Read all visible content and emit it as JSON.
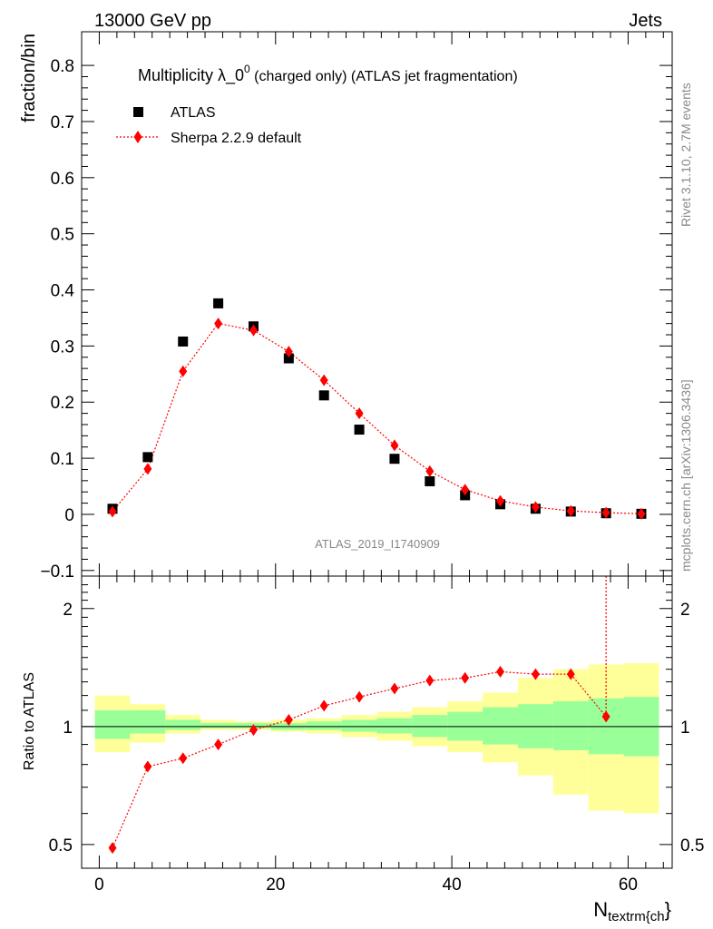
{
  "header": {
    "left": "13000 GeV pp",
    "right": "Jets"
  },
  "side_labels": {
    "rivet": "Rivet 3.1.10,  2.7M events",
    "mcplots": "mcplots.cern.ch [arXiv:1306.3436]"
  },
  "analysis_id": "ATLAS_2019_I1740909",
  "chart_data": [
    {
      "type": "scatter",
      "panel": "main",
      "title_main": "Multiplicity λ_0",
      "title_sup": "0",
      "title_rest": " (charged only) (ATLAS jet fragmentation)",
      "ylabel": "fraction/bin",
      "xlabel": "",
      "xlim": [
        -2,
        65
      ],
      "ylim": [
        -0.11,
        0.86
      ],
      "yticks": [
        -0.1,
        0,
        0.1,
        0.2,
        0.3,
        0.4,
        0.5,
        0.6,
        0.7,
        0.8
      ],
      "ytick_labels": [
        "−0.1",
        "0",
        "0.1",
        "0.2",
        "0.3",
        "0.4",
        "0.5",
        "0.6",
        "0.7",
        "0.8"
      ],
      "x": [
        1.5,
        5.5,
        9.5,
        13.5,
        17.5,
        21.5,
        25.5,
        29.5,
        33.5,
        37.5,
        41.5,
        45.5,
        49.5,
        53.5,
        57.5,
        61.5
      ],
      "series": [
        {
          "name": "ATLAS",
          "marker": "square",
          "color": "#000000",
          "values": [
            0.01,
            0.102,
            0.308,
            0.376,
            0.335,
            0.278,
            0.212,
            0.151,
            0.099,
            0.059,
            0.034,
            0.018,
            0.01,
            0.005,
            0.002,
            0.001
          ]
        },
        {
          "name": "Sherpa 2.2.9 default",
          "marker": "diamond",
          "color": "#ff0000",
          "values": [
            0.005,
            0.081,
            0.255,
            0.34,
            0.328,
            0.29,
            0.239,
            0.18,
            0.123,
            0.077,
            0.044,
            0.024,
            0.013,
            0.006,
            0.003,
            0.001
          ]
        }
      ]
    },
    {
      "type": "line",
      "panel": "ratio",
      "ylabel": "Ratio to ATLAS",
      "xlabel": "N",
      "xlabel_sub": "textrm{ch",
      "xlabel_end": "}",
      "xlim": [
        -2,
        65
      ],
      "ylim": [
        0.435,
        2.42
      ],
      "scale": "log",
      "yticks": [
        0.5,
        1,
        2
      ],
      "ytick_labels": [
        "0.5",
        "1",
        "2"
      ],
      "xticks": [
        0,
        20,
        40,
        60
      ],
      "xtick_labels": [
        "0",
        "20",
        "40",
        "60"
      ],
      "bins": [
        {
          "lo": -0.5,
          "hi": 3.5,
          "g_lo": 0.93,
          "g_hi": 1.1,
          "y_lo": 0.86,
          "y_hi": 1.2
        },
        {
          "lo": 3.5,
          "hi": 7.5,
          "g_lo": 0.96,
          "g_hi": 1.1,
          "y_lo": 0.91,
          "y_hi": 1.14
        },
        {
          "lo": 7.5,
          "hi": 11.5,
          "g_lo": 0.98,
          "g_hi": 1.04,
          "y_lo": 0.96,
          "y_hi": 1.07
        },
        {
          "lo": 11.5,
          "hi": 15.5,
          "g_lo": 0.99,
          "g_hi": 1.02,
          "y_lo": 0.98,
          "y_hi": 1.04
        },
        {
          "lo": 15.5,
          "hi": 19.5,
          "g_lo": 0.99,
          "g_hi": 1.02,
          "y_lo": 0.98,
          "y_hi": 1.03
        },
        {
          "lo": 19.5,
          "hi": 23.5,
          "g_lo": 0.98,
          "g_hi": 1.02,
          "y_lo": 0.97,
          "y_hi": 1.04
        },
        {
          "lo": 23.5,
          "hi": 27.5,
          "g_lo": 0.98,
          "g_hi": 1.03,
          "y_lo": 0.96,
          "y_hi": 1.05
        },
        {
          "lo": 27.5,
          "hi": 31.5,
          "g_lo": 0.97,
          "g_hi": 1.04,
          "y_lo": 0.94,
          "y_hi": 1.07
        },
        {
          "lo": 31.5,
          "hi": 35.5,
          "g_lo": 0.96,
          "g_hi": 1.05,
          "y_lo": 0.92,
          "y_hi": 1.09
        },
        {
          "lo": 35.5,
          "hi": 39.5,
          "g_lo": 0.94,
          "g_hi": 1.07,
          "y_lo": 0.89,
          "y_hi": 1.12
        },
        {
          "lo": 39.5,
          "hi": 43.5,
          "g_lo": 0.92,
          "g_hi": 1.09,
          "y_lo": 0.86,
          "y_hi": 1.16
        },
        {
          "lo": 43.5,
          "hi": 47.5,
          "g_lo": 0.9,
          "g_hi": 1.12,
          "y_lo": 0.81,
          "y_hi": 1.22
        },
        {
          "lo": 47.5,
          "hi": 51.5,
          "g_lo": 0.88,
          "g_hi": 1.14,
          "y_lo": 0.75,
          "y_hi": 1.33
        },
        {
          "lo": 51.5,
          "hi": 55.5,
          "g_lo": 0.87,
          "g_hi": 1.16,
          "y_lo": 0.67,
          "y_hi": 1.4
        },
        {
          "lo": 55.5,
          "hi": 59.5,
          "g_lo": 0.85,
          "g_hi": 1.18,
          "y_lo": 0.61,
          "y_hi": 1.44
        },
        {
          "lo": 59.5,
          "hi": 63.5,
          "g_lo": 0.84,
          "g_hi": 1.19,
          "y_lo": 0.6,
          "y_hi": 1.45
        }
      ],
      "reference": 1.0,
      "series": [
        {
          "name": "Sherpa 2.2.9 default",
          "color": "#ff0000",
          "x": [
            1.5,
            5.5,
            9.5,
            13.5,
            17.5,
            21.5,
            25.5,
            29.5,
            33.5,
            37.5,
            41.5,
            45.5,
            49.5,
            53.5,
            57.5
          ],
          "values": [
            0.49,
            0.79,
            0.83,
            0.9,
            0.98,
            1.04,
            1.13,
            1.19,
            1.25,
            1.31,
            1.33,
            1.38,
            1.36,
            1.36,
            1.06
          ]
        }
      ]
    }
  ],
  "colors": {
    "band_yellow": "#ffff99",
    "band_green": "#99ff99",
    "data": "#000000",
    "mc": "#ff0000"
  }
}
